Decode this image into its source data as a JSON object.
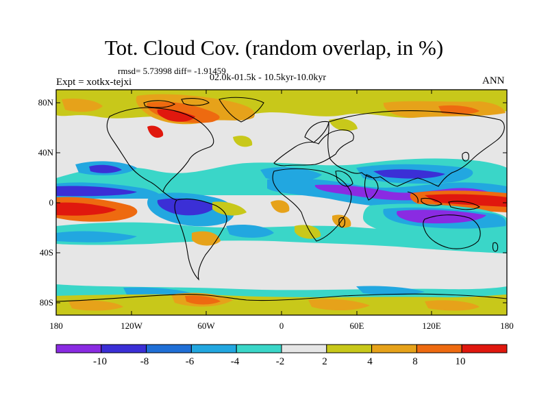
{
  "title": "Tot. Cloud Cov. (random overlap, in %)",
  "stats": {
    "rmsd_diff": "rmsd= 5.73998 diff= -1.91459",
    "period": "02.0k-01.5k - 10.5kyr-10.0kyr",
    "experiment": "Expt = xotkx-tejxi",
    "season": "ANN"
  },
  "map": {
    "lat_labels": [
      "80N",
      "40N",
      "0",
      "40S",
      "80S"
    ],
    "lon_labels": [
      "180",
      "120W",
      "60W",
      "0",
      "60E",
      "120E",
      "180"
    ]
  },
  "colorbar": {
    "labels": [
      "-10",
      "-8",
      "-6",
      "-4",
      "-2",
      "2",
      "4",
      "8",
      "10"
    ],
    "colors": [
      "#8a2be2",
      "#3b2fd6",
      "#1f6fd6",
      "#22a7e0",
      "#3ad6c8",
      "#e6e6e6",
      "#c8c81a",
      "#e6a21a",
      "#ee6a10",
      "#e0180e"
    ]
  },
  "chart_data": {
    "type": "heatmap",
    "title": "Tot. Cloud Cov. (random overlap, in %)",
    "x_ticks": [
      "180",
      "120W",
      "60W",
      "0",
      "60E",
      "120E",
      "180"
    ],
    "y_ticks": [
      "80N",
      "40N",
      "0",
      "40S",
      "80S"
    ],
    "xlim": [
      -180,
      180
    ],
    "ylim": [
      -90,
      90
    ],
    "levels": [
      -10,
      -8,
      -6,
      -4,
      -2,
      2,
      4,
      8,
      10
    ],
    "rmsd": 5.73998,
    "diff": -1.91459
  }
}
